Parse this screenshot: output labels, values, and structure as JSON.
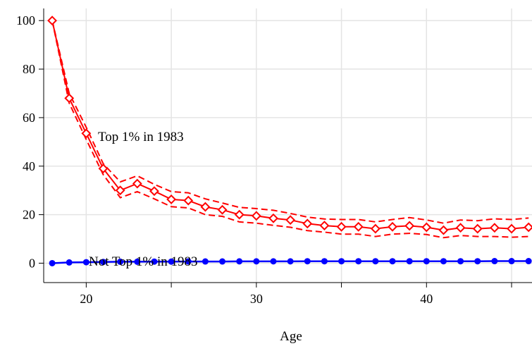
{
  "chart_data": {
    "type": "line",
    "title": "",
    "xlabel": "Age",
    "ylabel": "",
    "xlim": [
      17.5,
      46.2
    ],
    "ylim": [
      -8,
      105
    ],
    "x_ticks": [
      20,
      30,
      40
    ],
    "y_ticks": [
      0,
      20,
      40,
      60,
      80,
      100
    ],
    "grid": true,
    "x": [
      18,
      19,
      20,
      21,
      22,
      23,
      24,
      25,
      26,
      27,
      28,
      29,
      30,
      31,
      32,
      33,
      34,
      35,
      36,
      37,
      38,
      39,
      40,
      41,
      42,
      43,
      44,
      45,
      46
    ],
    "series": [
      {
        "name": "Top 1% in 1983",
        "color": "#ff0000",
        "marker": "hollow-diamond",
        "values": [
          100,
          68,
          53.5,
          39,
          30,
          32.8,
          29.7,
          26.3,
          25.8,
          23.2,
          22,
          20,
          19.5,
          18.5,
          17.8,
          16.3,
          15.5,
          15,
          15,
          14.2,
          15,
          15.4,
          14.8,
          13.6,
          14.6,
          14.2,
          14.6,
          14.2,
          14.8
        ],
        "ci_upper": [
          100,
          70,
          56,
          41,
          33.5,
          36,
          32.5,
          29.5,
          29,
          26.5,
          24.8,
          23,
          22.5,
          21.8,
          20.5,
          19,
          18.2,
          18,
          18,
          17,
          18,
          18.8,
          17.8,
          16.5,
          17.8,
          17.5,
          18.3,
          18,
          18.6
        ],
        "ci_lower": [
          100,
          66,
          51,
          36.5,
          27,
          29.5,
          26.5,
          23.3,
          22.8,
          20,
          19.3,
          17,
          16.5,
          15.6,
          14.8,
          13.4,
          12.8,
          12,
          12,
          11,
          12,
          12.3,
          11.8,
          10.5,
          11.4,
          11,
          11,
          10.7,
          11
        ]
      },
      {
        "name": "Not Top 1% in 1983",
        "color": "#0000ff",
        "marker": "filled-circle",
        "values": [
          0,
          0.3,
          0.4,
          0.5,
          0.6,
          0.6,
          0.65,
          0.65,
          0.7,
          0.7,
          0.7,
          0.75,
          0.75,
          0.75,
          0.75,
          0.8,
          0.8,
          0.8,
          0.8,
          0.8,
          0.8,
          0.8,
          0.8,
          0.8,
          0.8,
          0.8,
          0.85,
          0.85,
          0.85
        ]
      }
    ],
    "annotations": [
      {
        "text": "Top 1% in 1983",
        "series": 0
      },
      {
        "text": "Not Top 1% in 1983",
        "series": 1
      }
    ]
  }
}
